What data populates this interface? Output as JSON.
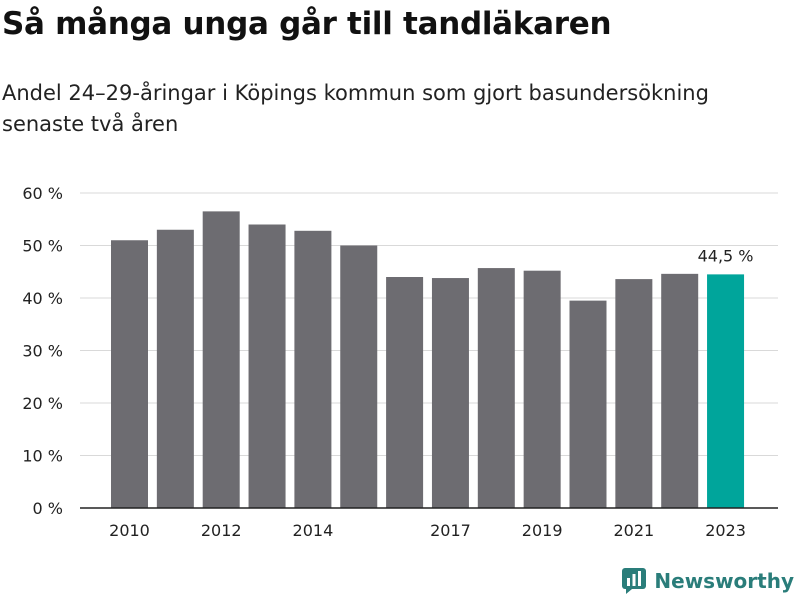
{
  "header": {
    "title": "Så många unga går till tandläkaren",
    "subtitle": "Andel 24–29-åringar i Köpings kommun som gjort basundersökning senaste två åren"
  },
  "brand": {
    "name": "Newsworthy",
    "icon": "newsworthy-logo-icon",
    "color": "#2a7d7a"
  },
  "colors": {
    "bar": "#6d6c71",
    "highlight": "#00a59b",
    "grid": "#d9d9d9",
    "axis": "#222222"
  },
  "chart_data": {
    "type": "bar",
    "categories": [
      "2010",
      "2011",
      "2012",
      "2013",
      "2014",
      "2015",
      "2016",
      "2017",
      "2018",
      "2019",
      "2020",
      "2021",
      "2022",
      "2023"
    ],
    "x_tick_labels": [
      "2010",
      "",
      "2012",
      "",
      "2014",
      "",
      "",
      "2017",
      "",
      "2019",
      "",
      "2021",
      "",
      "2023"
    ],
    "values": [
      51.0,
      53.0,
      56.5,
      54.0,
      52.8,
      50.0,
      44.0,
      43.8,
      45.7,
      45.2,
      39.5,
      43.6,
      44.6,
      44.5
    ],
    "y_ticks": [
      0,
      10,
      20,
      30,
      40,
      50,
      60
    ],
    "y_tick_labels": [
      "0 %",
      "10 %",
      "20 %",
      "30 %",
      "40 %",
      "50 %",
      "60 %"
    ],
    "ylim": [
      0,
      60
    ],
    "highlight_index": 13,
    "data_label": "44,5 %",
    "grid": true
  }
}
